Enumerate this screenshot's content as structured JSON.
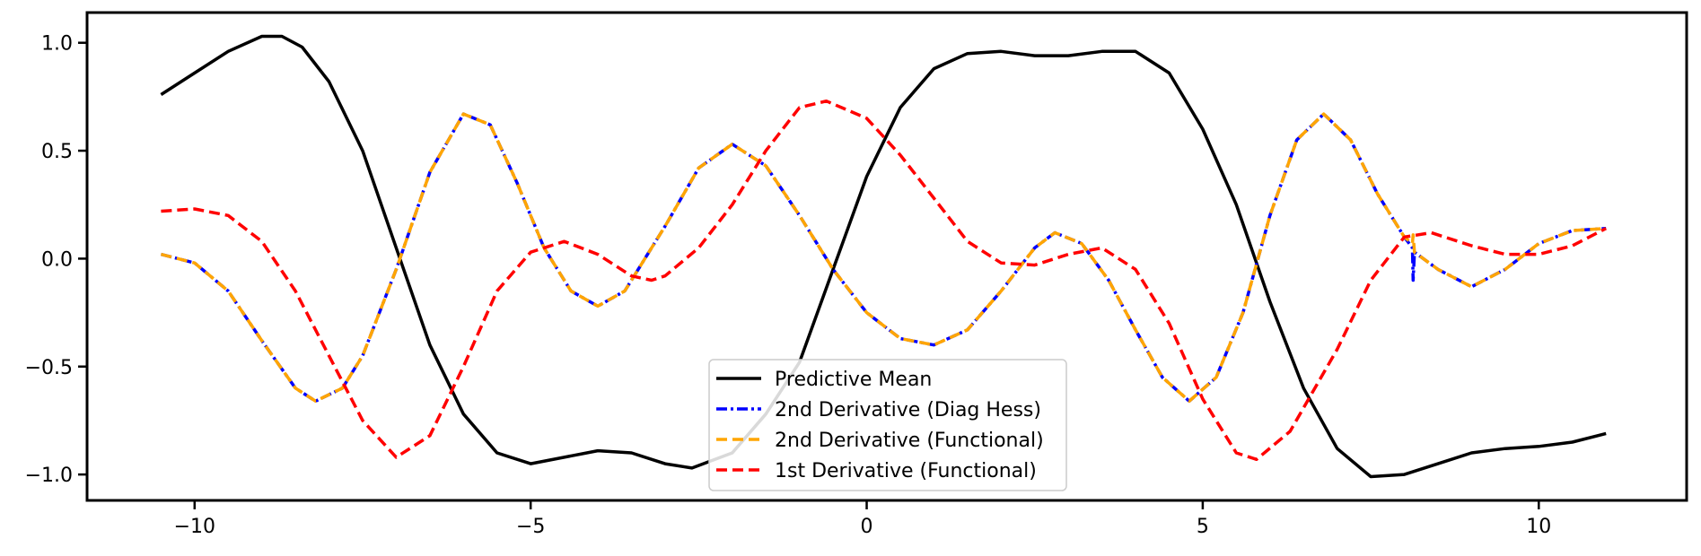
{
  "chart_data": {
    "type": "line",
    "title": "",
    "xlabel": "",
    "ylabel": "",
    "xlim": [
      -11.6,
      12.2
    ],
    "ylim": [
      -1.12,
      1.14
    ],
    "xticks": [
      -10,
      -5,
      0,
      5,
      10
    ],
    "xtick_labels": [
      "−10",
      "−5",
      "0",
      "5",
      "10"
    ],
    "yticks": [
      -1.0,
      -0.5,
      0.0,
      0.5,
      1.0
    ],
    "ytick_labels": [
      "−1.0",
      "−0.5",
      "0.0",
      "0.5",
      "1.0"
    ],
    "grid": false,
    "legend_position": "bottom-center",
    "series": [
      {
        "name": "Predictive Mean",
        "color": "#000000",
        "dash": "solid",
        "points": [
          [
            -10.5,
            0.76
          ],
          [
            -10,
            0.86
          ],
          [
            -9.5,
            0.96
          ],
          [
            -9,
            1.03
          ],
          [
            -8.7,
            1.03
          ],
          [
            -8.4,
            0.98
          ],
          [
            -8,
            0.82
          ],
          [
            -7.5,
            0.5
          ],
          [
            -7,
            0.05
          ],
          [
            -6.5,
            -0.4
          ],
          [
            -6,
            -0.72
          ],
          [
            -5.5,
            -0.9
          ],
          [
            -5,
            -0.95
          ],
          [
            -4.5,
            -0.92
          ],
          [
            -4,
            -0.89
          ],
          [
            -3.5,
            -0.9
          ],
          [
            -3,
            -0.95
          ],
          [
            -2.6,
            -0.97
          ],
          [
            -2,
            -0.9
          ],
          [
            -1.5,
            -0.72
          ],
          [
            -1,
            -0.48
          ],
          [
            -0.5,
            -0.05
          ],
          [
            0,
            0.38
          ],
          [
            0.5,
            0.7
          ],
          [
            1,
            0.88
          ],
          [
            1.5,
            0.95
          ],
          [
            2,
            0.96
          ],
          [
            2.5,
            0.94
          ],
          [
            3,
            0.94
          ],
          [
            3.5,
            0.96
          ],
          [
            4,
            0.96
          ],
          [
            4.5,
            0.86
          ],
          [
            5,
            0.6
          ],
          [
            5.5,
            0.25
          ],
          [
            6,
            -0.2
          ],
          [
            6.5,
            -0.6
          ],
          [
            7,
            -0.88
          ],
          [
            7.5,
            -1.01
          ],
          [
            8,
            -1.0
          ],
          [
            8.5,
            -0.95
          ],
          [
            9,
            -0.9
          ],
          [
            9.5,
            -0.88
          ],
          [
            10,
            -0.87
          ],
          [
            10.5,
            -0.85
          ],
          [
            11,
            -0.81
          ]
        ]
      },
      {
        "name": "2nd Derivative (Diag Hess)",
        "color": "#0000ff",
        "dash": "dashdot",
        "points": [
          [
            -10.5,
            0.02
          ],
          [
            -10,
            -0.02
          ],
          [
            -9.5,
            -0.15
          ],
          [
            -9,
            -0.38
          ],
          [
            -8.5,
            -0.6
          ],
          [
            -8.2,
            -0.66
          ],
          [
            -7.8,
            -0.6
          ],
          [
            -7.5,
            -0.45
          ],
          [
            -7,
            -0.05
          ],
          [
            -6.5,
            0.4
          ],
          [
            -6,
            0.67
          ],
          [
            -5.6,
            0.62
          ],
          [
            -5.2,
            0.35
          ],
          [
            -4.8,
            0.05
          ],
          [
            -4.4,
            -0.15
          ],
          [
            -4,
            -0.22
          ],
          [
            -3.6,
            -0.15
          ],
          [
            -3,
            0.15
          ],
          [
            -2.5,
            0.42
          ],
          [
            -2,
            0.53
          ],
          [
            -1.5,
            0.43
          ],
          [
            -1,
            0.2
          ],
          [
            -0.5,
            -0.05
          ],
          [
            0,
            -0.25
          ],
          [
            0.5,
            -0.37
          ],
          [
            1,
            -0.4
          ],
          [
            1.5,
            -0.33
          ],
          [
            2,
            -0.15
          ],
          [
            2.5,
            0.05
          ],
          [
            2.8,
            0.12
          ],
          [
            3.2,
            0.07
          ],
          [
            3.6,
            -0.1
          ],
          [
            4,
            -0.33
          ],
          [
            4.4,
            -0.55
          ],
          [
            4.8,
            -0.66
          ],
          [
            5.2,
            -0.55
          ],
          [
            5.6,
            -0.25
          ],
          [
            6,
            0.2
          ],
          [
            6.4,
            0.55
          ],
          [
            6.8,
            0.67
          ],
          [
            7.2,
            0.55
          ],
          [
            7.6,
            0.3
          ],
          [
            8,
            0.1
          ],
          [
            8.12,
            0.05
          ],
          [
            8.13,
            -0.1
          ],
          [
            8.15,
            0.03
          ],
          [
            8.5,
            -0.05
          ],
          [
            9,
            -0.13
          ],
          [
            9.5,
            -0.05
          ],
          [
            10,
            0.07
          ],
          [
            10.5,
            0.13
          ],
          [
            11,
            0.14
          ]
        ]
      },
      {
        "name": "2nd Derivative (Functional)",
        "color": "#ffa500",
        "dash": "dashed",
        "points": [
          [
            -10.5,
            0.02
          ],
          [
            -10,
            -0.02
          ],
          [
            -9.5,
            -0.15
          ],
          [
            -9,
            -0.38
          ],
          [
            -8.5,
            -0.6
          ],
          [
            -8.2,
            -0.66
          ],
          [
            -7.8,
            -0.6
          ],
          [
            -7.5,
            -0.45
          ],
          [
            -7,
            -0.05
          ],
          [
            -6.5,
            0.4
          ],
          [
            -6,
            0.67
          ],
          [
            -5.6,
            0.62
          ],
          [
            -5.2,
            0.35
          ],
          [
            -4.8,
            0.05
          ],
          [
            -4.4,
            -0.15
          ],
          [
            -4,
            -0.22
          ],
          [
            -3.6,
            -0.15
          ],
          [
            -3,
            0.15
          ],
          [
            -2.5,
            0.42
          ],
          [
            -2,
            0.53
          ],
          [
            -1.5,
            0.43
          ],
          [
            -1,
            0.2
          ],
          [
            -0.5,
            -0.05
          ],
          [
            0,
            -0.25
          ],
          [
            0.5,
            -0.37
          ],
          [
            1,
            -0.4
          ],
          [
            1.5,
            -0.33
          ],
          [
            2,
            -0.15
          ],
          [
            2.5,
            0.05
          ],
          [
            2.8,
            0.12
          ],
          [
            3.2,
            0.07
          ],
          [
            3.6,
            -0.1
          ],
          [
            4,
            -0.33
          ],
          [
            4.4,
            -0.55
          ],
          [
            4.8,
            -0.66
          ],
          [
            5.2,
            -0.55
          ],
          [
            5.6,
            -0.25
          ],
          [
            6,
            0.2
          ],
          [
            6.4,
            0.55
          ],
          [
            6.8,
            0.67
          ],
          [
            7.2,
            0.55
          ],
          [
            7.6,
            0.3
          ],
          [
            8,
            0.1
          ],
          [
            8.12,
            0.07
          ],
          [
            8.13,
            0.11
          ],
          [
            8.15,
            0.03
          ],
          [
            8.5,
            -0.05
          ],
          [
            9,
            -0.13
          ],
          [
            9.5,
            -0.05
          ],
          [
            10,
            0.07
          ],
          [
            10.5,
            0.13
          ],
          [
            11,
            0.14
          ]
        ]
      },
      {
        "name": "1st Derivative (Functional)",
        "color": "#ff0000",
        "dash": "dashed",
        "points": [
          [
            -10.5,
            0.22
          ],
          [
            -10,
            0.23
          ],
          [
            -9.5,
            0.2
          ],
          [
            -9,
            0.08
          ],
          [
            -8.5,
            -0.15
          ],
          [
            -8,
            -0.45
          ],
          [
            -7.5,
            -0.75
          ],
          [
            -7,
            -0.92
          ],
          [
            -6.5,
            -0.82
          ],
          [
            -6,
            -0.5
          ],
          [
            -5.5,
            -0.15
          ],
          [
            -5,
            0.03
          ],
          [
            -4.5,
            0.08
          ],
          [
            -4,
            0.02
          ],
          [
            -3.5,
            -0.08
          ],
          [
            -3.2,
            -0.1
          ],
          [
            -3,
            -0.08
          ],
          [
            -2.5,
            0.05
          ],
          [
            -2,
            0.25
          ],
          [
            -1.5,
            0.5
          ],
          [
            -1,
            0.7
          ],
          [
            -0.6,
            0.73
          ],
          [
            0,
            0.65
          ],
          [
            0.5,
            0.48
          ],
          [
            1,
            0.28
          ],
          [
            1.5,
            0.08
          ],
          [
            2,
            -0.02
          ],
          [
            2.5,
            -0.03
          ],
          [
            3,
            0.02
          ],
          [
            3.5,
            0.05
          ],
          [
            4,
            -0.05
          ],
          [
            4.5,
            -0.3
          ],
          [
            5,
            -0.65
          ],
          [
            5.5,
            -0.9
          ],
          [
            5.8,
            -0.93
          ],
          [
            6.3,
            -0.8
          ],
          [
            7,
            -0.42
          ],
          [
            7.5,
            -0.1
          ],
          [
            8,
            0.1
          ],
          [
            8.4,
            0.12
          ],
          [
            9,
            0.06
          ],
          [
            9.5,
            0.02
          ],
          [
            10,
            0.02
          ],
          [
            10.5,
            0.06
          ],
          [
            11,
            0.14
          ]
        ]
      }
    ]
  }
}
